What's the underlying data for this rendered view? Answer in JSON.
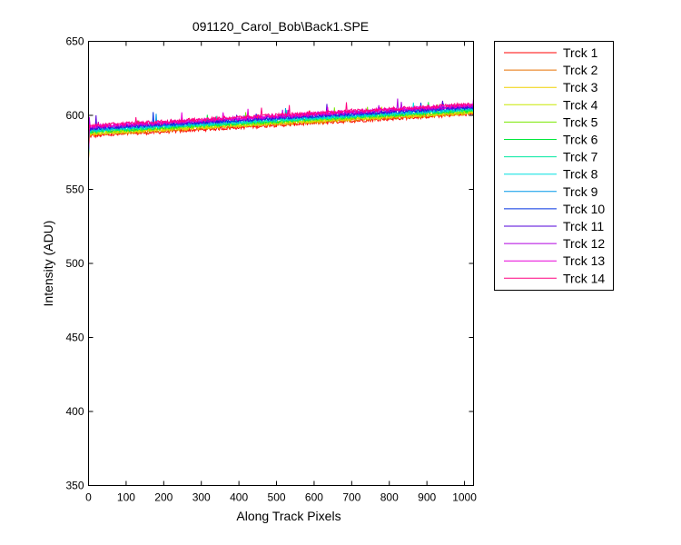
{
  "chart_data": {
    "type": "line",
    "title": "091120_Carol_Bob\\Back1.SPE",
    "xlabel": "Along Track Pixels",
    "ylabel": "Intensity (ADU)",
    "xlim": [
      0,
      1024
    ],
    "ylim": [
      350,
      650
    ],
    "xticks": [
      0,
      100,
      200,
      300,
      400,
      500,
      600,
      700,
      800,
      900,
      1000
    ],
    "yticks": [
      350,
      400,
      450,
      500,
      550,
      600,
      650
    ],
    "grid": false,
    "legend_position": "outside-right-top",
    "series": [
      {
        "name": "Trck 1",
        "color": "#ff0000",
        "start": 586,
        "end": 601,
        "first": 570
      },
      {
        "name": "Trck 2",
        "color": "#e87000",
        "start": 587,
        "end": 601.5,
        "first": 571
      },
      {
        "name": "Trck 3",
        "color": "#f0d000",
        "start": 587.5,
        "end": 602,
        "first": 572
      },
      {
        "name": "Trck 4",
        "color": "#c8e800",
        "start": 588,
        "end": 602.5,
        "first": 572
      },
      {
        "name": "Trck 5",
        "color": "#7ae800",
        "start": 588.5,
        "end": 603,
        "first": 573
      },
      {
        "name": "Trck 6",
        "color": "#00e83c",
        "start": 589,
        "end": 603.5,
        "first": 573
      },
      {
        "name": "Trck 7",
        "color": "#00e8a0",
        "start": 589.5,
        "end": 604,
        "first": 574
      },
      {
        "name": "Trck 8",
        "color": "#00e0e0",
        "start": 590,
        "end": 604.5,
        "first": 574
      },
      {
        "name": "Trck 9",
        "color": "#0098e8",
        "start": 590.5,
        "end": 605,
        "first": 575
      },
      {
        "name": "Trck 10",
        "color": "#0030e0",
        "start": 591,
        "end": 605.5,
        "first": 575
      },
      {
        "name": "Trck 11",
        "color": "#5000d8",
        "start": 591.5,
        "end": 606,
        "first": 576
      },
      {
        "name": "Trck 12",
        "color": "#b000e0",
        "start": 592,
        "end": 606.5,
        "first": 576
      },
      {
        "name": "Trck 13",
        "color": "#e800d8",
        "start": 592.5,
        "end": 607,
        "first": 577
      },
      {
        "name": "Trck 14",
        "color": "#ff0080",
        "start": 593,
        "end": 607.5,
        "first": 578
      }
    ]
  }
}
